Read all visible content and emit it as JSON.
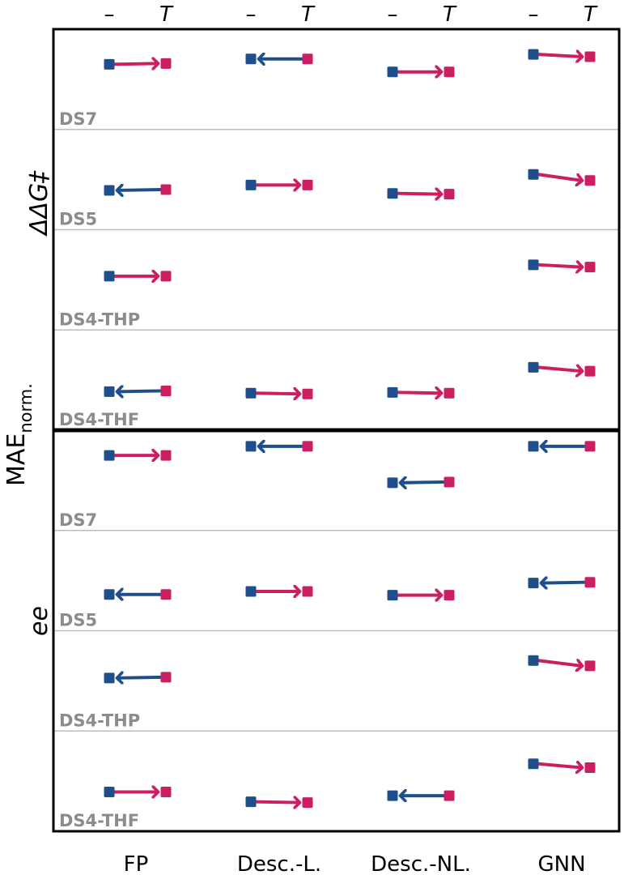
{
  "chart_data": {
    "type": "scatter",
    "columns": [
      "FP",
      "Desc.-L.",
      "Desc.-NL.",
      "GNN"
    ],
    "endpoint_labels": [
      "–",
      "T"
    ],
    "y_axis_label": {
      "prefix": "MAE",
      "subscript": "norm.",
      "top_group": "ΔΔG‡",
      "bottom_group": "ee"
    },
    "colors": {
      "decrease": "#1f4e8c",
      "increase": "#cc1f62",
      "marker_minus": "#1f4e8c",
      "marker_T": "#cc1f62",
      "separator": "#bdbdbd",
      "ds_label": "#8c8c8c"
    },
    "groups": [
      {
        "name": "ΔΔG‡",
        "rows": [
          {
            "dataset": "DS7",
            "values": [
              [
                0.73,
                0.74
              ],
              [
                0.8,
                0.8
              ],
              [
                0.63,
                0.63
              ],
              [
                0.86,
                0.83
              ]
            ]
          },
          {
            "dataset": "DS5",
            "values": [
              [
                0.39,
                0.4
              ],
              [
                0.46,
                0.46
              ],
              [
                0.35,
                0.34
              ],
              [
                0.6,
                0.52
              ]
            ]
          },
          {
            "dataset": "DS4-THP",
            "values": [
              [
                0.58,
                0.58
              ],
              null,
              null,
              [
                0.73,
                0.7
              ]
            ]
          },
          {
            "dataset": "DS4-THF",
            "values": [
              [
                0.38,
                0.39
              ],
              [
                0.36,
                0.35
              ],
              [
                0.37,
                0.36
              ],
              [
                0.7,
                0.65
              ]
            ]
          }
        ]
      },
      {
        "name": "ee",
        "rows": [
          {
            "dataset": "DS7",
            "values": [
              [
                0.86,
                0.86
              ],
              [
                0.98,
                0.98
              ],
              [
                0.5,
                0.51
              ],
              [
                0.98,
                0.98
              ]
            ]
          },
          {
            "dataset": "DS5",
            "values": [
              [
                0.35,
                0.35
              ],
              [
                0.39,
                0.39
              ],
              [
                0.34,
                0.34
              ],
              [
                0.5,
                0.51
              ]
            ]
          },
          {
            "dataset": "DS4-THP",
            "values": [
              [
                0.57,
                0.58
              ],
              null,
              null,
              [
                0.8,
                0.73
              ]
            ]
          },
          {
            "dataset": "DS4-THF",
            "values": [
              [
                0.39,
                0.39
              ],
              [
                0.26,
                0.25
              ],
              [
                0.34,
                0.34
              ],
              [
                0.76,
                0.71
              ]
            ]
          }
        ]
      }
    ]
  }
}
